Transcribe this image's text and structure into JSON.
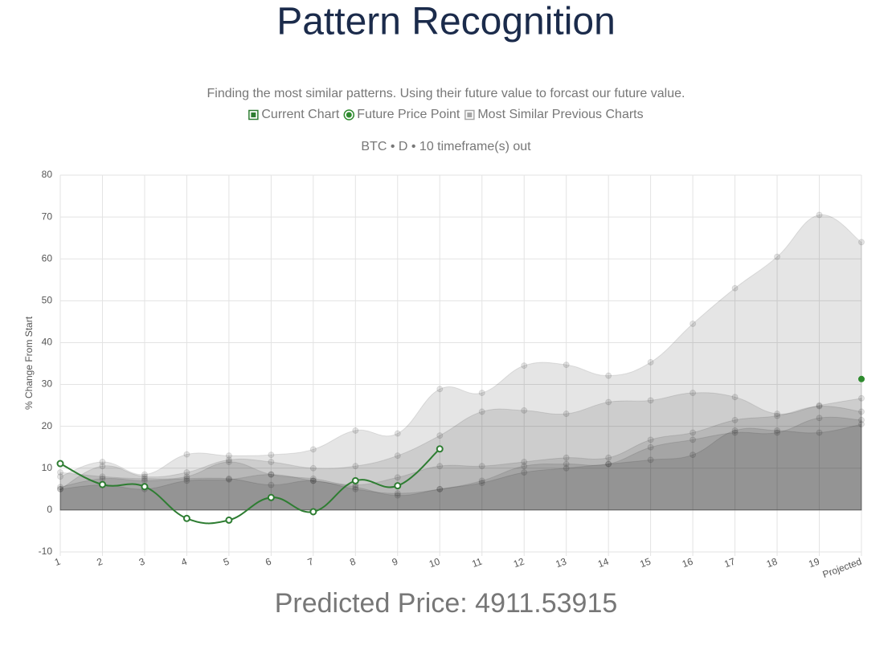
{
  "page": {
    "title": "Pattern Recognition",
    "predicted": "Predicted Price: 4911.53915"
  },
  "chart_data": {
    "type": "area",
    "subtitle": "Finding the most similar patterns. Using their future value to forcast our future value.",
    "title": "BTC • D • 10 timeframe(s) out",
    "y_label": "% Change From Start",
    "categories": [
      "1",
      "2",
      "3",
      "4",
      "5",
      "6",
      "7",
      "8",
      "9",
      "10",
      "11",
      "12",
      "13",
      "14",
      "15",
      "16",
      "17",
      "18",
      "19",
      "Projected"
    ],
    "ylim": [
      -10,
      80
    ],
    "yticks": [
      -10,
      0,
      10,
      20,
      30,
      40,
      50,
      60,
      70,
      80
    ],
    "grid": true,
    "series": [
      {
        "name": "Current Chart",
        "color": "#2e7d32",
        "values": [
          11.1,
          6.1,
          5.6,
          -2,
          -2.4,
          3,
          -0.4,
          7,
          5.8,
          14.6,
          null,
          null,
          null,
          null,
          null,
          null,
          null,
          null,
          null,
          null
        ]
      },
      {
        "name": "Future Price Point",
        "color": "#2e8b2e",
        "values": [
          null,
          null,
          null,
          null,
          null,
          null,
          null,
          null,
          null,
          null,
          null,
          null,
          null,
          null,
          null,
          null,
          null,
          null,
          null,
          31.3
        ]
      },
      {
        "name": "Most Similar Previous Charts",
        "color": "rgba(0,0,0,0.1)",
        "values": [
          8,
          11.5,
          8.5,
          13.3,
          13,
          13.2,
          14.5,
          19,
          18.3,
          28.9,
          28,
          34.5,
          34.7,
          32.1,
          35.3,
          44.5,
          53,
          60.5,
          70.5,
          64
        ]
      },
      {
        "color": "rgba(0,0,0,0.1)",
        "values": [
          5,
          10.5,
          8,
          9,
          12,
          11.5,
          10,
          10.5,
          13,
          17.8,
          23.5,
          23.8,
          23,
          25.8,
          26.2,
          28,
          27,
          23,
          25,
          26.7
        ]
      },
      {
        "color": "rgba(0,0,0,0.1)",
        "values": [
          9,
          8,
          7.5,
          8,
          11.5,
          8.5,
          7.5,
          6,
          7.8,
          10.5,
          10.5,
          11.5,
          12.5,
          12.5,
          16.8,
          18.5,
          21.5,
          22.5,
          24.8,
          23.5
        ]
      },
      {
        "color": "rgba(0,0,0,0.1)",
        "values": [
          5.5,
          7.5,
          7,
          7.5,
          7.5,
          6,
          7,
          5,
          4,
          5,
          7,
          10.5,
          11,
          11,
          15,
          16.8,
          18.5,
          18.5,
          22,
          21.5
        ]
      },
      {
        "color": "rgba(0,0,0,0.1)",
        "values": [
          5,
          6,
          5,
          7,
          7.3,
          8.5,
          7,
          5.5,
          3.5,
          5,
          6.5,
          9,
          10,
          11,
          12,
          13.2,
          19,
          19,
          18.5,
          20.5
        ]
      }
    ]
  }
}
